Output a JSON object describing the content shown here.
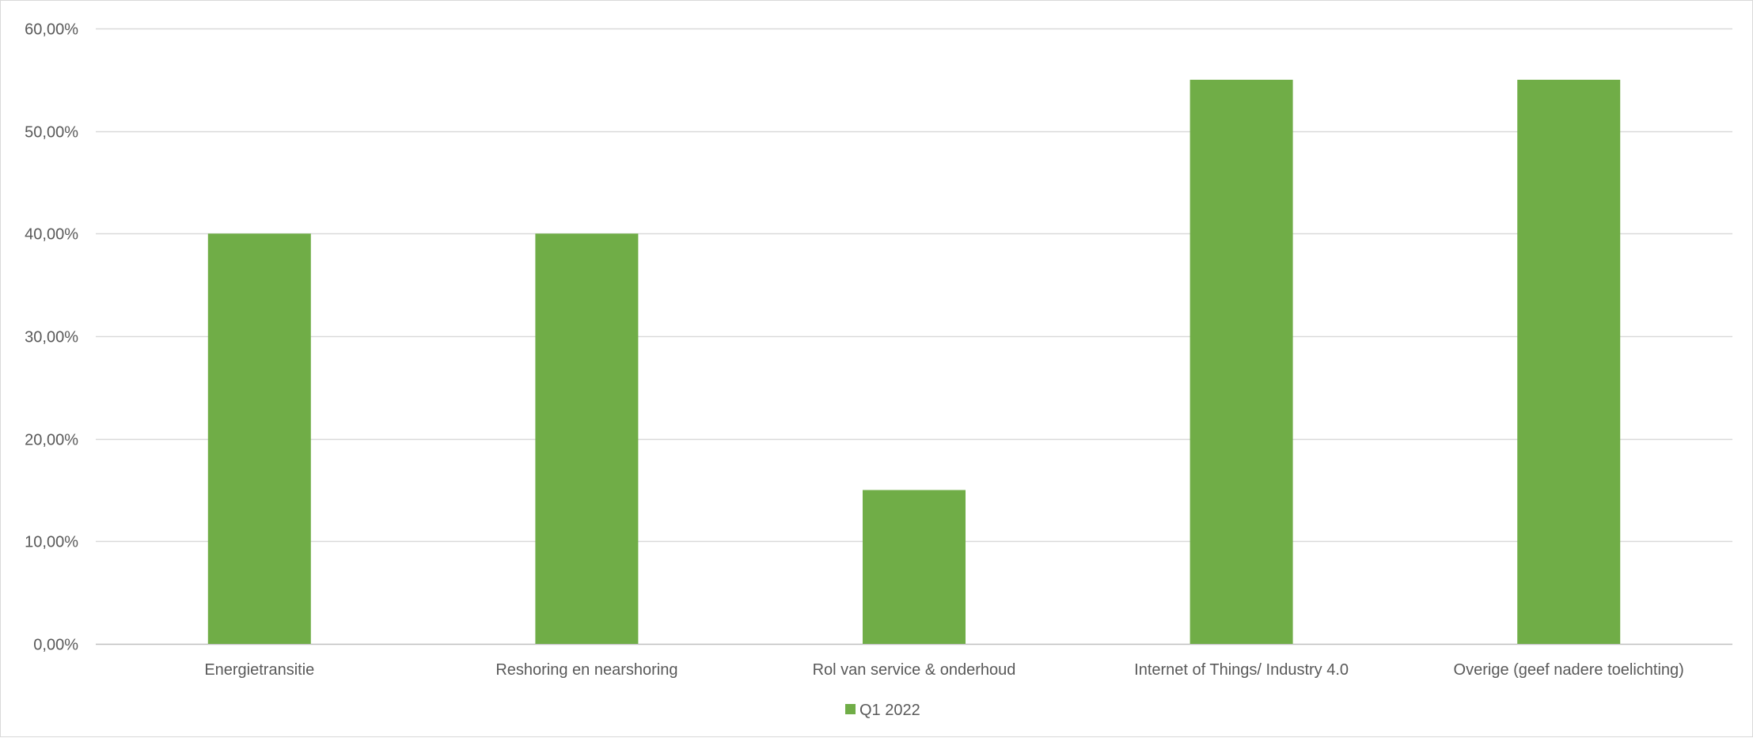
{
  "chart_data": {
    "type": "bar",
    "title": "",
    "xlabel": "",
    "ylabel": "",
    "categories": [
      "Energietransitie",
      "Reshoring en nearshoring",
      "Rol van service & onderhoud",
      "Internet of Things/ Industry 4.0",
      "Overige (geef nadere toelichting)"
    ],
    "series": [
      {
        "name": "Q1 2022",
        "color": "#70ad47",
        "values": [
          40,
          40,
          15,
          55,
          55
        ]
      }
    ],
    "ylim": [
      0,
      60
    ],
    "yticks": [
      0,
      10,
      20,
      30,
      40,
      50,
      60
    ],
    "ytick_labels": [
      "0,00%",
      "10,00%",
      "20,00%",
      "30,00%",
      "40,00%",
      "50,00%",
      "60,00%"
    ],
    "grid": true,
    "legend_position": "bottom"
  }
}
